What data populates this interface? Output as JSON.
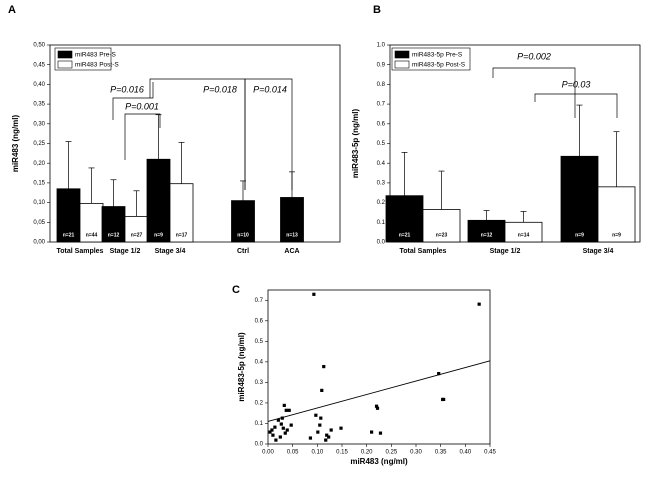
{
  "chart_data": [
    {
      "type": "bar",
      "panel": "A",
      "ylabel": "miR483 (ng/ml)",
      "categories": [
        "Total Samples",
        "Stage 1/2",
        "Stage 3/4",
        "Ctrl",
        "ACA"
      ],
      "series": [
        {
          "name": "miR483 Pre-S",
          "color": "#000000",
          "values": [
            0.135,
            0.09,
            0.21,
            0.105,
            0.113
          ],
          "errors": [
            0.12,
            0.068,
            0.113,
            0.05,
            0.065
          ],
          "n_labels": [
            "n=21",
            "n=12",
            "n=9",
            "n=10",
            "n=13"
          ]
        },
        {
          "name": "miR483 Post-S",
          "color": "#ffffff",
          "values": [
            0.098,
            0.065,
            0.148,
            null,
            null
          ],
          "errors": [
            0.09,
            0.065,
            0.105,
            null,
            null
          ],
          "n_labels": [
            "n=44",
            "n=27",
            "n=17",
            null,
            null
          ]
        }
      ],
      "ylim": [
        0,
        0.5
      ],
      "yticks": [
        {
          "value": 0,
          "label": "0,00"
        },
        {
          "value": 0.05,
          "label": "0,05"
        },
        {
          "value": 0.1,
          "label": "0,10"
        },
        {
          "value": 0.15,
          "label": "0,15"
        },
        {
          "value": 0.2,
          "label": "0,20"
        },
        {
          "value": 0.25,
          "label": "0,25"
        },
        {
          "value": 0.3,
          "label": "0,30"
        },
        {
          "value": 0.35,
          "label": "0,35"
        },
        {
          "value": 0.4,
          "label": "0,40"
        },
        {
          "value": 0.45,
          "label": "0,45"
        },
        {
          "value": 0.5,
          "label": "0,50"
        }
      ],
      "legend": "upper left",
      "annotations": [
        "P=0.016",
        "P=0.001",
        "P=0.018",
        "P=0.014"
      ]
    },
    {
      "type": "bar",
      "panel": "B",
      "ylabel": "miR483-5p (ng/ml)",
      "categories": [
        "Total Samples",
        "Stage 1/2",
        "Stage 3/4"
      ],
      "series": [
        {
          "name": "miR483-5p Pre-S",
          "color": "#000000",
          "values": [
            0.235,
            0.11,
            0.435
          ],
          "errors": [
            0.22,
            0.05,
            0.26
          ],
          "n_labels": [
            "n=21",
            "n=12",
            "n=9"
          ]
        },
        {
          "name": "miR483-5p Post-S",
          "color": "#ffffff",
          "values": [
            0.165,
            0.1,
            0.28
          ],
          "errors": [
            0.195,
            0.055,
            0.28
          ],
          "n_labels": [
            "n=23",
            "n=14",
            "n=9"
          ]
        }
      ],
      "ylim": [
        0,
        1
      ],
      "yticks": [
        {
          "value": 0,
          "label": "0.0"
        },
        0.1,
        0.2,
        0.3,
        0.4,
        0.5,
        0.6,
        0.7,
        0.8,
        0.9,
        {
          "value": 1,
          "label": "1.0"
        }
      ],
      "legend": "upper left",
      "annotations": [
        "P=0.002",
        "P=0.03"
      ]
    },
    {
      "type": "scatter",
      "panel": "C",
      "xlabel": "miR483 (ng/ml)",
      "ylabel": "miR483-5p (ng/ml)",
      "color": "#000000",
      "x": [
        0.004,
        0.008,
        0.01,
        0.014,
        0.016,
        0.021,
        0.025,
        0.027,
        0.029,
        0.031,
        0.033,
        0.035,
        0.037,
        0.039,
        0.043,
        0.047,
        0.086,
        0.093,
        0.097,
        0.101,
        0.105,
        0.107,
        0.109,
        0.113,
        0.117,
        0.119,
        0.123,
        0.128,
        0.148,
        0.21,
        0.22,
        0.222,
        0.228,
        0.346,
        0.354,
        0.356,
        0.428
      ],
      "y": [
        0.058,
        0.068,
        0.043,
        0.082,
        0.019,
        0.116,
        0.034,
        0.097,
        0.126,
        0.077,
        0.188,
        0.053,
        0.164,
        0.068,
        0.164,
        0.092,
        0.029,
        0.729,
        0.14,
        0.058,
        0.092,
        0.126,
        0.261,
        0.377,
        0.019,
        0.043,
        0.034,
        0.068,
        0.077,
        0.058,
        0.184,
        0.174,
        0.053,
        0.343,
        0.217,
        0.217,
        0.681
      ],
      "fit": {
        "x": [
          0,
          0.45
        ],
        "y": [
          0.11,
          0.405
        ]
      },
      "xlim": [
        0,
        0.45
      ],
      "xticks": [
        {
          "value": 0,
          "label": "0.00"
        },
        0.05,
        {
          "value": 0.1,
          "label": "0.10"
        },
        0.15,
        {
          "value": 0.2,
          "label": "0.20"
        },
        0.25,
        {
          "value": 0.3,
          "label": "0.30"
        },
        0.35,
        {
          "value": 0.4,
          "label": "0.40"
        },
        0.45
      ],
      "ylim": [
        0,
        0.75
      ],
      "yticks": [
        {
          "value": 0,
          "label": "0.0"
        },
        0.1,
        0.2,
        0.3,
        0.4,
        0.5,
        0.6,
        0.7
      ]
    }
  ]
}
